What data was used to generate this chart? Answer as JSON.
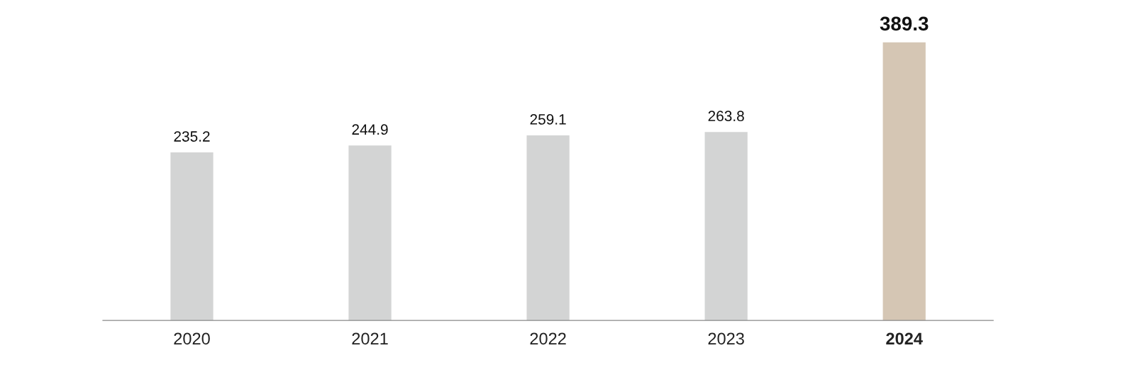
{
  "chart_data": {
    "type": "bar",
    "categories": [
      "2020",
      "2021",
      "2022",
      "2023",
      "2024"
    ],
    "values": [
      235.2,
      244.9,
      259.1,
      263.8,
      389.3
    ],
    "colors": [
      "#d3d4d4",
      "#d3d4d4",
      "#d3d4d4",
      "#d3d4d4",
      "#d5c6b4"
    ],
    "data_labels": true,
    "tick_labels": "x",
    "grid": false,
    "legend": false
  }
}
